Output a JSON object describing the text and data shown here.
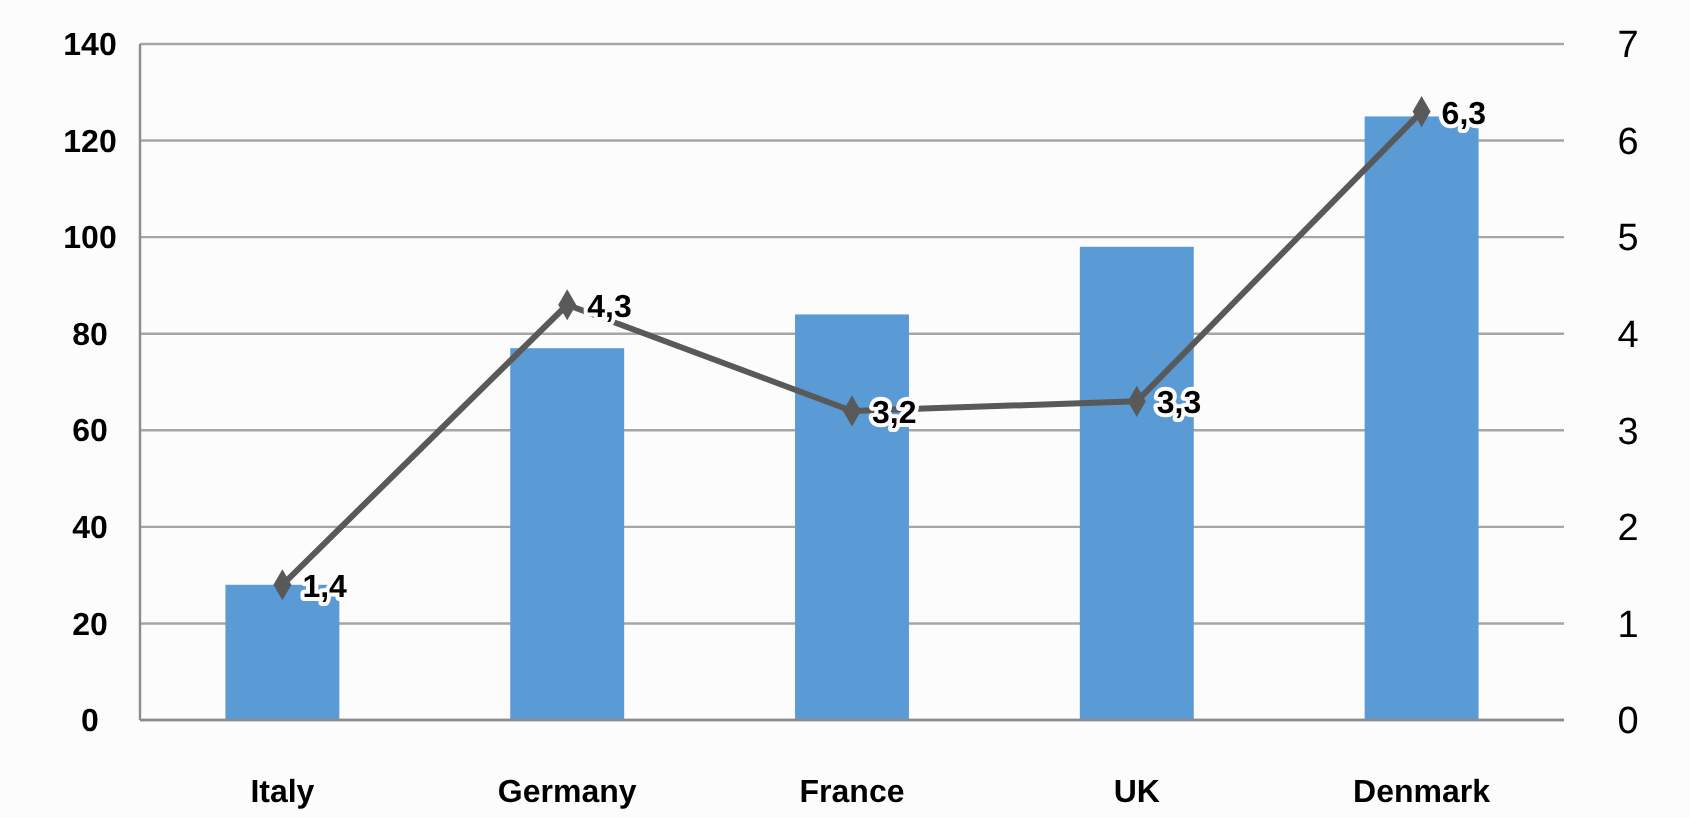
{
  "chart_data": {
    "type": "bar",
    "categories": [
      "Italy",
      "Germany",
      "France",
      "UK",
      "Denmark"
    ],
    "series": [
      {
        "color": "#5b9bd5",
        "values": [
          28,
          77,
          84,
          98,
          125
        ]
      },
      {
        "type": "line",
        "axis": "y2",
        "color": "#595959",
        "marker": "diamond",
        "values": [
          1.4,
          4.3,
          3.2,
          3.3,
          6.3
        ],
        "value_labels": [
          "1,4",
          "4,3",
          "3,2",
          "3,3",
          "6,3"
        ]
      }
    ],
    "ylim": [
      0,
      140
    ],
    "yticks": [
      0,
      20,
      40,
      60,
      80,
      100,
      120,
      140
    ],
    "y2lim": [
      0,
      7
    ],
    "y2ticks": [
      0,
      1,
      2,
      3,
      4,
      5,
      6,
      7
    ],
    "grid": "y"
  }
}
